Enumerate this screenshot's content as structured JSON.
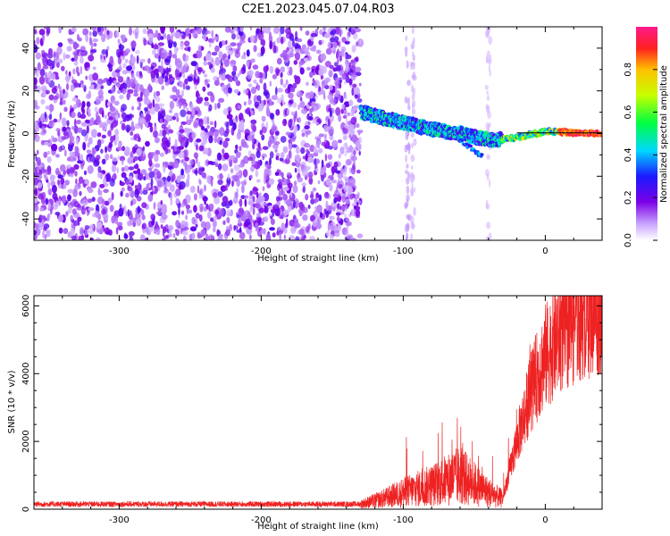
{
  "title": "C2E1.2023.045.07.04.R03",
  "chart_data": [
    {
      "type": "heatmap",
      "xlabel": "Height of straight line (km)",
      "ylabel": "Frequency (Hz)",
      "xlim": [
        -360,
        40
      ],
      "ylim": [
        -50,
        50
      ],
      "xticks": [
        -300,
        -200,
        -100,
        0
      ],
      "yticks": [
        -40,
        -20,
        0,
        20,
        40
      ],
      "colorbar": {
        "label": "Normalized spectral amplitude",
        "range": [
          0.0,
          1.0
        ],
        "ticks": [
          0.0,
          0.2,
          0.4,
          0.6,
          0.8
        ],
        "colormap": "white-purple-blue-cyan-green-yellow-red-pink"
      },
      "features": {
        "noise_region_x": [
          -360,
          -130
        ],
        "signal_trace": [
          {
            "x": -130,
            "y": 10
          },
          {
            "x": -100,
            "y": 5
          },
          {
            "x": -80,
            "y": 2
          },
          {
            "x": -60,
            "y": 0
          },
          {
            "x": -40,
            "y": -3
          },
          {
            "x": -20,
            "y": -2
          },
          {
            "x": 0,
            "y": 1
          },
          {
            "x": 40,
            "y": 0
          }
        ]
      }
    },
    {
      "type": "line",
      "xlabel": "Height of straight line (km)",
      "ylabel": "SNR (10 * v/v)",
      "xlim": [
        -360,
        40
      ],
      "ylim": [
        0,
        6300
      ],
      "xticks": [
        -300,
        -200,
        -100,
        0
      ],
      "yticks": [
        0,
        2000,
        4000,
        6000
      ],
      "grid": false,
      "series_color": "#ee2222",
      "envelope": {
        "x": [
          -360,
          -130,
          -115,
          -100,
          -80,
          -60,
          -40,
          -30,
          -20,
          -10,
          0,
          10,
          20,
          30,
          40
        ],
        "y": [
          150,
          150,
          300,
          500,
          700,
          1000,
          500,
          300,
          2000,
          3500,
          4500,
          5200,
          5600,
          5900,
          6000
        ]
      }
    }
  ]
}
